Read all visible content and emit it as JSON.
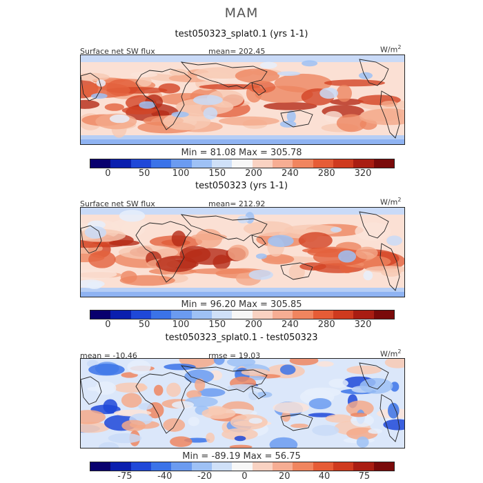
{
  "season": "MAM",
  "panels": [
    {
      "title": "test050323_splat0.1 (yrs 1-1)",
      "left_label": "Surface net SW flux",
      "stat_label": "mean= 202.45",
      "units": "W/m",
      "units_sup": "2",
      "minmax": "Min =  81.08 Max = 305.78",
      "colorbar_ticks": [
        "0",
        "50",
        "100",
        "150",
        "200",
        "240",
        "280",
        "320"
      ],
      "colors": [
        "#08006e",
        "#0a1fae",
        "#1f48d8",
        "#3b73e8",
        "#6b9bf0",
        "#9ec1f5",
        "#cfe0f8",
        "#f7f7f7",
        "#f9d2c2",
        "#f6ad93",
        "#f0855f",
        "#e65c36",
        "#cf3a1e",
        "#a91d12",
        "#7a0a0a"
      ]
    },
    {
      "title": "test050323 (yrs 1-1)",
      "left_label": "Surface net SW flux",
      "stat_label": "mean= 212.92",
      "units": "W/m",
      "units_sup": "2",
      "minmax": "Min =  96.20 Max = 305.85",
      "colorbar_ticks": [
        "0",
        "50",
        "100",
        "150",
        "200",
        "240",
        "280",
        "320"
      ],
      "colors": [
        "#08006e",
        "#0a1fae",
        "#1f48d8",
        "#3b73e8",
        "#6b9bf0",
        "#9ec1f5",
        "#cfe0f8",
        "#f7f7f7",
        "#f9d2c2",
        "#f6ad93",
        "#f0855f",
        "#e65c36",
        "#cf3a1e",
        "#a91d12",
        "#7a0a0a"
      ]
    },
    {
      "title": "test050323_splat0.1 - test050323",
      "left_label": "mean = -10.46",
      "stat_label": "rmse =  19.03",
      "units": "W/m",
      "units_sup": "2",
      "minmax": "Min = -89.19 Max =  56.75",
      "colorbar_ticks": [
        "-75",
        "-40",
        "-20",
        "0",
        "20",
        "40",
        "75"
      ],
      "colors": [
        "#08006e",
        "#0a1fae",
        "#1f48d8",
        "#3b73e8",
        "#6b9bf0",
        "#9ec1f5",
        "#cfe0f8",
        "#f7f7f7",
        "#f9d2c2",
        "#f6ad93",
        "#f0855f",
        "#e65c36",
        "#cf3a1e",
        "#a91d12",
        "#7a0a0a"
      ]
    }
  ],
  "chart_data": [
    {
      "type": "heatmap",
      "title": "test050323_splat0.1 (yrs 1-1)",
      "variable": "Surface net SW flux",
      "units": "W/m2",
      "mean": 202.45,
      "min": 81.08,
      "max": 305.78,
      "colorbar_levels": [
        0,
        50,
        100,
        150,
        200,
        240,
        280,
        320
      ],
      "region": "tropics / mid-latitudes global map"
    },
    {
      "type": "heatmap",
      "title": "test050323 (yrs 1-1)",
      "variable": "Surface net SW flux",
      "units": "W/m2",
      "mean": 212.92,
      "min": 96.2,
      "max": 305.85,
      "colorbar_levels": [
        0,
        50,
        100,
        150,
        200,
        240,
        280,
        320
      ],
      "region": "tropics / mid-latitudes global map"
    },
    {
      "type": "heatmap",
      "title": "test050323_splat0.1 - test050323",
      "units": "W/m2",
      "mean": -10.46,
      "rmse": 19.03,
      "min": -89.19,
      "max": 56.75,
      "colorbar_levels": [
        -75,
        -40,
        -20,
        0,
        20,
        40,
        75
      ],
      "region": "tropics / mid-latitudes global map"
    }
  ]
}
